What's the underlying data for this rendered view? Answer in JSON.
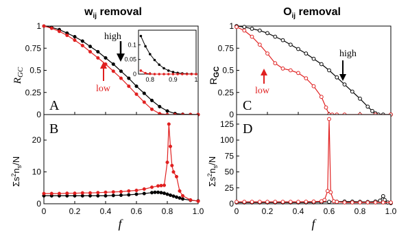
{
  "chart_data": {
    "titles": {
      "left": {
        "main": "w",
        "sub": "ij",
        "rest": " removal"
      },
      "right": {
        "main": "O",
        "sub": "ij",
        "rest": " removal"
      }
    },
    "xlabel": "f",
    "colors": {
      "high": "#000000",
      "low": "#e02020",
      "inset_line": "#444444"
    },
    "panels": [
      {
        "id": "A",
        "type": "line",
        "ylabel_main": "R",
        "ylabel_sub": "GC",
        "ylabel_sub_style": "italic",
        "xlim": [
          0,
          1
        ],
        "ylim": [
          0,
          1
        ],
        "xticks": [],
        "yticks": [
          "0",
          "0.25",
          "0.5",
          "0.75",
          "1"
        ],
        "annotations": {
          "high": "high",
          "low": "low"
        },
        "series": [
          {
            "name": "high",
            "marker": "filled-circle",
            "x": [
              0,
              0.05,
              0.1,
              0.15,
              0.2,
              0.25,
              0.3,
              0.35,
              0.4,
              0.45,
              0.5,
              0.55,
              0.6,
              0.65,
              0.7,
              0.75,
              0.8,
              0.85,
              0.9,
              0.95,
              1.0
            ],
            "y": [
              1,
              0.985,
              0.96,
              0.92,
              0.88,
              0.83,
              0.77,
              0.71,
              0.64,
              0.57,
              0.49,
              0.41,
              0.32,
              0.24,
              0.16,
              0.09,
              0.04,
              0.012,
              0.003,
              0.001,
              0
            ]
          },
          {
            "name": "low",
            "marker": "filled-circle",
            "x": [
              0,
              0.05,
              0.1,
              0.15,
              0.2,
              0.25,
              0.3,
              0.35,
              0.4,
              0.45,
              0.5,
              0.55,
              0.6,
              0.65,
              0.7,
              0.75,
              0.8,
              0.85,
              0.9,
              0.95,
              1.0
            ],
            "y": [
              1,
              0.975,
              0.94,
              0.895,
              0.84,
              0.78,
              0.71,
              0.64,
              0.57,
              0.49,
              0.41,
              0.32,
              0.23,
              0.14,
              0.06,
              0.01,
              0,
              0,
              0,
              0,
              0
            ]
          }
        ],
        "inset": {
          "xlim": [
            0.75,
            1
          ],
          "ylim": [
            0,
            0.15
          ],
          "xticks": [
            "0.8",
            "0.9",
            "1"
          ],
          "yticks": [
            "0",
            "0.05",
            "0.1"
          ],
          "series": [
            {
              "name": "high",
              "x": [
                0.76,
                0.78,
                0.8,
                0.82,
                0.84,
                0.86,
                0.88,
                0.9,
                0.92,
                0.94,
                0.96,
                0.98,
                1.0
              ],
              "y": [
                0.13,
                0.095,
                0.068,
                0.048,
                0.032,
                0.02,
                0.012,
                0.007,
                0.004,
                0.002,
                0.001,
                0.0005,
                0
              ]
            },
            {
              "name": "low",
              "x": [
                0.76,
                0.78,
                0.8,
                0.82,
                0.84,
                0.86,
                0.88,
                0.9,
                0.92,
                0.94,
                0.96,
                0.98,
                1.0
              ],
              "y": [
                0.012,
                0.003,
                0.001,
                0,
                0,
                0,
                0,
                0,
                0,
                0,
                0,
                0,
                0
              ]
            }
          ]
        }
      },
      {
        "id": "B",
        "type": "line",
        "ylabel_main": "Σs",
        "ylabel_sup1": "2",
        "ylabel_mid": "n",
        "ylabel_sub": "s",
        "ylabel_rest": "/N",
        "xlim": [
          0,
          1
        ],
        "ylim": [
          0,
          28
        ],
        "xticks": [
          "0",
          "0.2",
          "0.4",
          "0.6",
          "0.8",
          "1.0"
        ],
        "yticks": [
          "0",
          "10",
          "20"
        ],
        "series": [
          {
            "name": "high",
            "marker": "filled-circle",
            "x": [
              0,
              0.05,
              0.1,
              0.15,
              0.2,
              0.25,
              0.3,
              0.35,
              0.4,
              0.45,
              0.5,
              0.55,
              0.6,
              0.65,
              0.7,
              0.72,
              0.74,
              0.76,
              0.78,
              0.8,
              0.82,
              0.84,
              0.86,
              0.88,
              0.9,
              0.95,
              1.0
            ],
            "y": [
              2.5,
              2.5,
              2.5,
              2.5,
              2.5,
              2.5,
              2.5,
              2.5,
              2.5,
              2.6,
              2.7,
              2.8,
              3.0,
              3.2,
              3.5,
              3.6,
              3.6,
              3.5,
              3.3,
              3.0,
              2.7,
              2.4,
              2.1,
              1.8,
              1.5,
              1.1,
              0.9
            ]
          },
          {
            "name": "low",
            "marker": "filled-circle",
            "x": [
              0,
              0.05,
              0.1,
              0.15,
              0.2,
              0.25,
              0.3,
              0.35,
              0.4,
              0.45,
              0.5,
              0.55,
              0.6,
              0.65,
              0.7,
              0.74,
              0.76,
              0.78,
              0.8,
              0.81,
              0.82,
              0.83,
              0.84,
              0.86,
              0.88,
              0.9,
              0.95,
              1.0
            ],
            "y": [
              3.2,
              3.2,
              3.2,
              3.3,
              3.3,
              3.4,
              3.4,
              3.5,
              3.6,
              3.7,
              3.8,
              4.0,
              4.2,
              4.6,
              5.2,
              5.6,
              5.7,
              5.8,
              13,
              25,
              18,
              12,
              10,
              8.5,
              4,
              2.5,
              1.2,
              0.8
            ]
          }
        ]
      },
      {
        "id": "C",
        "type": "line",
        "ylabel_main": "R",
        "ylabel_sub": "GC",
        "ylabel_sub_style": "bold",
        "xlim": [
          0,
          1
        ],
        "ylim": [
          0,
          1
        ],
        "xticks": [],
        "yticks": [
          "0",
          "0.25",
          "0.5",
          "0.75",
          "1"
        ],
        "annotations": {
          "high": "high",
          "low": "low"
        },
        "series": [
          {
            "name": "high",
            "marker": "open-circle",
            "x": [
              0,
              0.05,
              0.1,
              0.15,
              0.2,
              0.25,
              0.3,
              0.35,
              0.4,
              0.45,
              0.5,
              0.55,
              0.6,
              0.65,
              0.7,
              0.75,
              0.8,
              0.85,
              0.88,
              0.9,
              0.92,
              0.95,
              1.0
            ],
            "y": [
              1,
              0.99,
              0.97,
              0.95,
              0.92,
              0.88,
              0.84,
              0.79,
              0.74,
              0.69,
              0.63,
              0.57,
              0.5,
              0.42,
              0.34,
              0.26,
              0.18,
              0.09,
              0.04,
              0.015,
              0,
              0,
              0
            ]
          },
          {
            "name": "low",
            "marker": "open-circle",
            "x": [
              0,
              0.05,
              0.1,
              0.15,
              0.2,
              0.25,
              0.3,
              0.35,
              0.4,
              0.45,
              0.5,
              0.55,
              0.58,
              0.6,
              0.62,
              0.65,
              0.7,
              0.8,
              0.9,
              1.0
            ],
            "y": [
              0.99,
              0.95,
              0.88,
              0.79,
              0.69,
              0.58,
              0.52,
              0.5,
              0.47,
              0.41,
              0.32,
              0.2,
              0.08,
              0,
              0,
              0,
              0,
              0,
              0,
              0
            ]
          }
        ]
      },
      {
        "id": "D",
        "type": "line",
        "ylabel_main": "Σs",
        "ylabel_sup1": "2",
        "ylabel_mid": "n",
        "ylabel_sub": "s",
        "ylabel_rest": "/N",
        "xlim": [
          0,
          1
        ],
        "ylim": [
          0,
          140
        ],
        "xticks": [
          "0",
          "0.2",
          "0.4",
          "0.6",
          "0.8",
          "1.0"
        ],
        "yticks": [
          "0",
          "25",
          "50",
          "75",
          "100",
          "125"
        ],
        "series": [
          {
            "name": "high",
            "marker": "open-circle",
            "x": [
              0,
              0.05,
              0.1,
              0.15,
              0.2,
              0.25,
              0.3,
              0.35,
              0.4,
              0.45,
              0.5,
              0.55,
              0.6,
              0.65,
              0.7,
              0.75,
              0.8,
              0.85,
              0.9,
              0.93,
              0.95,
              0.96,
              0.98,
              1.0
            ],
            "y": [
              2,
              2,
              2,
              2,
              2,
              2,
              2,
              2,
              2,
              2,
              2.2,
              2.5,
              3,
              3.2,
              3.5,
              3.3,
              3,
              2.8,
              3.5,
              5,
              12,
              6,
              2,
              1
            ]
          },
          {
            "name": "low",
            "marker": "open-circle",
            "x": [
              0,
              0.05,
              0.1,
              0.15,
              0.2,
              0.25,
              0.3,
              0.35,
              0.4,
              0.45,
              0.5,
              0.55,
              0.57,
              0.59,
              0.6,
              0.61,
              0.63,
              0.65,
              0.7,
              0.75,
              0.8,
              0.85,
              0.9,
              0.95,
              1.0
            ],
            "y": [
              3,
              3,
              3,
              3,
              3,
              3,
              3,
              3,
              3,
              3.2,
              3.5,
              4,
              6,
              20,
              133,
              18,
              4,
              3,
              2,
              2,
              2,
              2,
              2,
              2,
              2
            ]
          }
        ]
      }
    ]
  }
}
